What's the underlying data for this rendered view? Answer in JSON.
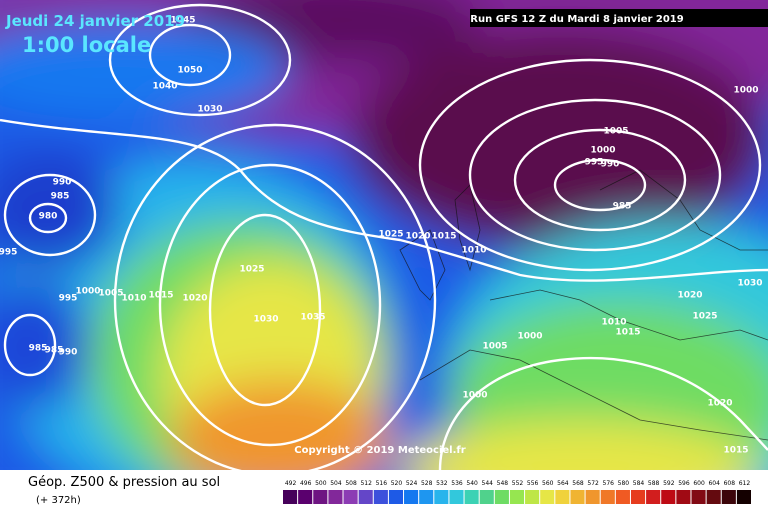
{
  "header": {
    "date": "Jeudi 24 janvier 2019",
    "time": "1:00 locale",
    "run": "Run GFS 12 Z du Mardi 8 janvier 2019"
  },
  "map": {
    "copyright": "Copyright © 2019 Meteociel.fr",
    "isobar_labels": [
      1045,
      1050,
      1040,
      1030,
      990,
      985,
      980,
      995,
      995,
      1000,
      1005,
      1010,
      1015,
      1020,
      1025,
      1030,
      1035,
      1025,
      1020,
      1015,
      1010,
      985,
      985,
      990,
      1005,
      1000,
      995,
      990,
      985,
      1000,
      1020,
      1030,
      1025,
      1010,
      1015,
      1005,
      1000,
      1000,
      1020,
      1015
    ]
  },
  "footer": {
    "title": "Géop. Z500 & pression au sol",
    "lead": "(+ 372h)"
  },
  "scale": {
    "values": [
      492,
      496,
      500,
      504,
      508,
      512,
      516,
      520,
      524,
      528,
      532,
      536,
      540,
      544,
      548,
      552,
      556,
      560,
      564,
      568,
      572,
      576,
      580,
      584,
      588,
      592,
      596,
      600,
      604,
      608,
      612
    ],
    "colors": [
      "#46005a",
      "#5a006e",
      "#6e1482",
      "#82289a",
      "#8c3cb4",
      "#6446c8",
      "#3c50dc",
      "#1e5ae6",
      "#1478f0",
      "#1e96f0",
      "#28b4ec",
      "#32c8dc",
      "#3cd2b4",
      "#50d28c",
      "#6edc64",
      "#96e650",
      "#bee646",
      "#e6e646",
      "#f0d23c",
      "#f0b432",
      "#f0962d",
      "#f07828",
      "#f05a23",
      "#e63c1e",
      "#d21e1e",
      "#be0a14",
      "#a00a14",
      "#820a14",
      "#640a0f",
      "#3c050a",
      "#140000"
    ]
  }
}
